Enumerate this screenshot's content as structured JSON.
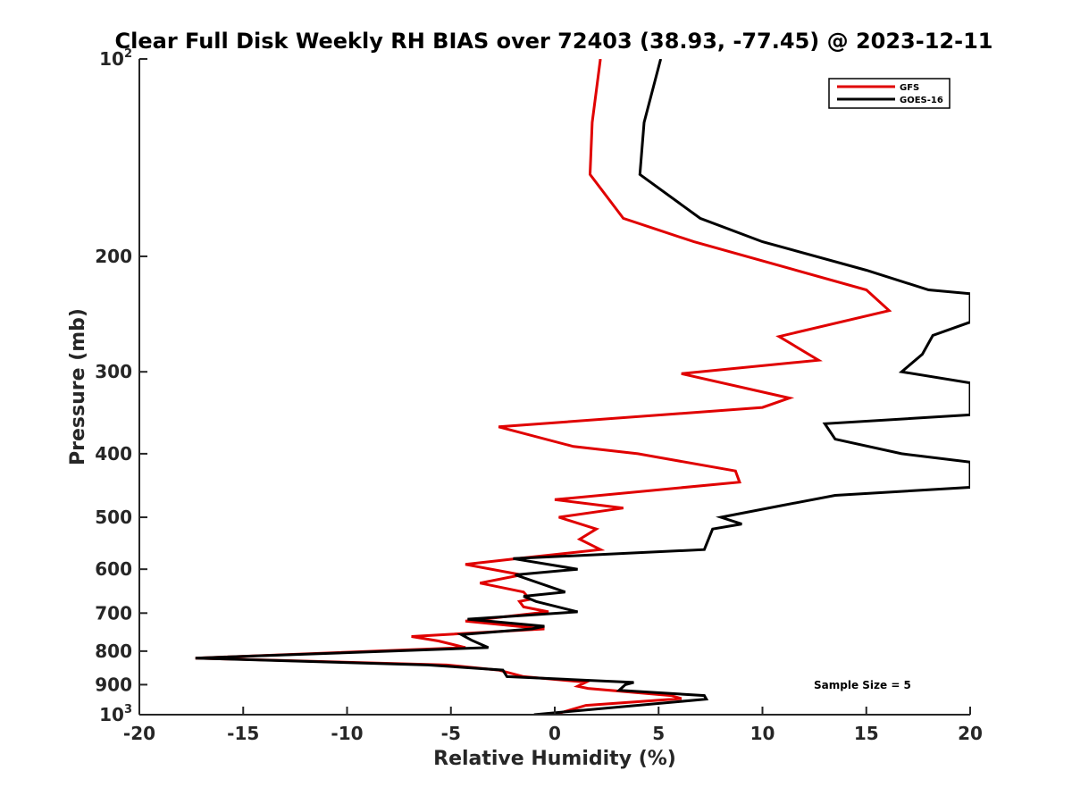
{
  "chart_data": {
    "type": "line",
    "title": "Clear Full Disk Weekly RH BIAS over 72403 (38.93, -77.45) @ 2023-12-11",
    "xlabel": "Relative Humidity (%)",
    "ylabel": "Pressure (mb)",
    "xlim": [
      -20,
      20
    ],
    "ylim": [
      100,
      1000
    ],
    "y_scale": "log",
    "y_reversed": true,
    "x_ticks": [
      -20,
      -15,
      -10,
      -5,
      0,
      5,
      10,
      15,
      20
    ],
    "x_tick_labels": [
      "-20",
      "-15",
      "-10",
      "-5",
      "0",
      "5",
      "10",
      "15",
      "20"
    ],
    "y_ticks": [
      100,
      200,
      300,
      400,
      500,
      600,
      700,
      800,
      900,
      1000
    ],
    "y_tick_labels": [
      {
        "base": "10",
        "sup": "2"
      },
      {
        "base": "200",
        "sup": ""
      },
      {
        "base": "300",
        "sup": ""
      },
      {
        "base": "400",
        "sup": ""
      },
      {
        "base": "500",
        "sup": ""
      },
      {
        "base": "600",
        "sup": ""
      },
      {
        "base": "700",
        "sup": ""
      },
      {
        "base": "800",
        "sup": ""
      },
      {
        "base": "900",
        "sup": ""
      },
      {
        "base": "10",
        "sup": "3"
      }
    ],
    "legend_position": "top-right",
    "grid": false,
    "annotation": "Sample Size = 5",
    "series": [
      {
        "name": "GFS",
        "color": "#e00000",
        "points": [
          [
            2.2,
            100
          ],
          [
            1.8,
            125
          ],
          [
            1.7,
            150
          ],
          [
            3.3,
            175
          ],
          [
            6.7,
            190
          ],
          [
            15.0,
            225
          ],
          [
            16.1,
            242
          ],
          [
            10.8,
            265
          ],
          [
            12.7,
            288
          ],
          [
            6.1,
            302
          ],
          [
            11.3,
            329
          ],
          [
            10.0,
            340
          ],
          [
            -2.7,
            364
          ],
          [
            0.9,
            390
          ],
          [
            4.0,
            400
          ],
          [
            8.7,
            425
          ],
          [
            8.9,
            442
          ],
          [
            0.0,
            470
          ],
          [
            3.3,
            484
          ],
          [
            0.2,
            500
          ],
          [
            2.0,
            521
          ],
          [
            1.2,
            540
          ],
          [
            2.2,
            560
          ],
          [
            -1.8,
            578
          ],
          [
            -4.3,
            590
          ],
          [
            -1.6,
            612
          ],
          [
            -3.6,
            630
          ],
          [
            -1.5,
            650
          ],
          [
            -1.2,
            667
          ],
          [
            -1.7,
            672
          ],
          [
            -1.5,
            685
          ],
          [
            -0.3,
            697
          ],
          [
            -4.3,
            720
          ],
          [
            -0.5,
            740
          ],
          [
            -6.9,
            760
          ],
          [
            -5.6,
            772
          ],
          [
            -4.3,
            790
          ],
          [
            -17.3,
            820
          ],
          [
            -5.2,
            840
          ],
          [
            -2.7,
            855
          ],
          [
            -1.5,
            875
          ],
          [
            1.5,
            892
          ],
          [
            1.1,
            905
          ],
          [
            1.6,
            912
          ],
          [
            5.6,
            935
          ],
          [
            6.1,
            945
          ],
          [
            1.5,
            968
          ],
          [
            0.2,
            995
          ]
        ]
      },
      {
        "name": "GOES-16",
        "color": "#000000",
        "points": [
          [
            5.1,
            100
          ],
          [
            4.3,
            125
          ],
          [
            4.1,
            150
          ],
          [
            7.0,
            175
          ],
          [
            10.0,
            190
          ],
          [
            15.0,
            210
          ],
          [
            18.0,
            225
          ],
          [
            20.0,
            228
          ],
          [
            20.0,
            252
          ],
          [
            18.2,
            264
          ],
          [
            17.7,
            282
          ],
          [
            16.7,
            300
          ],
          [
            20.0,
            312
          ],
          [
            20.0,
            349
          ],
          [
            13.0,
            360
          ],
          [
            13.5,
            380
          ],
          [
            16.7,
            400
          ],
          [
            20.0,
            412
          ],
          [
            20.0,
            450
          ],
          [
            13.5,
            463
          ],
          [
            10.9,
            480
          ],
          [
            8.0,
            500
          ],
          [
            9.0,
            512
          ],
          [
            7.6,
            521
          ],
          [
            7.2,
            560
          ],
          [
            -2.0,
            578
          ],
          [
            1.1,
            600
          ],
          [
            -1.9,
            612
          ],
          [
            0.5,
            650
          ],
          [
            -1.5,
            660
          ],
          [
            -0.9,
            672
          ],
          [
            1.1,
            697
          ],
          [
            -4.2,
            715
          ],
          [
            -0.5,
            733
          ],
          [
            -1.1,
            740
          ],
          [
            -4.5,
            755
          ],
          [
            -4.0,
            770
          ],
          [
            -3.2,
            790
          ],
          [
            -17.3,
            820
          ],
          [
            -6.1,
            840
          ],
          [
            -2.5,
            855
          ],
          [
            -2.3,
            875
          ],
          [
            3.8,
            893
          ],
          [
            3.4,
            900
          ],
          [
            3.1,
            918
          ],
          [
            7.2,
            935
          ],
          [
            7.3,
            947
          ],
          [
            -1.0,
            1000
          ]
        ]
      }
    ]
  }
}
